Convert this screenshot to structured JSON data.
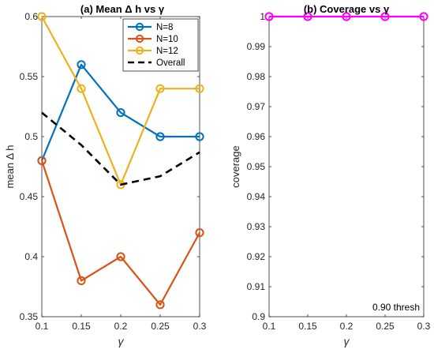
{
  "chart_data": [
    {
      "type": "line",
      "title": "(a) Mean Δ h vs γ",
      "xlabel": "γ",
      "ylabel": "mean Δ h",
      "xlim": [
        0.1,
        0.3
      ],
      "ylim": [
        0.35,
        0.6
      ],
      "xticks": [
        "0.1",
        "0.15",
        "0.2",
        "0.25",
        "0.3"
      ],
      "yticks": [
        "0.35",
        "0.4",
        "0.45",
        "0.5",
        "0.55",
        "0.6"
      ],
      "x": [
        0.1,
        0.15,
        0.2,
        0.25,
        0.3
      ],
      "grid": false,
      "legend_position": "top-right",
      "series": [
        {
          "name": "N=8",
          "values": [
            0.48,
            0.56,
            0.52,
            0.5,
            0.5
          ],
          "color": "#0072BD",
          "marker": "circle",
          "style": "solid"
        },
        {
          "name": "N=10",
          "values": [
            0.48,
            0.38,
            0.4,
            0.36,
            0.42
          ],
          "color": "#D95319",
          "marker": "circle",
          "style": "solid"
        },
        {
          "name": "N=12",
          "values": [
            0.6,
            0.54,
            0.46,
            0.54,
            0.54
          ],
          "color": "#EDB120",
          "marker": "circle",
          "style": "solid"
        },
        {
          "name": "Overall",
          "values": [
            0.52,
            0.493,
            0.46,
            0.467,
            0.487
          ],
          "color": "#000000",
          "marker": "none",
          "style": "dashed"
        }
      ]
    },
    {
      "type": "line",
      "title": "(b) Coverage vs γ",
      "xlabel": "γ",
      "ylabel": "coverage",
      "xlim": [
        0.1,
        0.3
      ],
      "ylim": [
        0.9,
        1.0
      ],
      "xticks": [
        "0.1",
        "0.15",
        "0.2",
        "0.25",
        "0.3"
      ],
      "yticks": [
        "0.9",
        "0.91",
        "0.92",
        "0.93",
        "0.94",
        "0.95",
        "0.96",
        "0.97",
        "0.98",
        "0.99",
        "1"
      ],
      "x": [
        0.1,
        0.15,
        0.2,
        0.25,
        0.3
      ],
      "grid": false,
      "series": [
        {
          "values": [
            1,
            1,
            1,
            1,
            1
          ],
          "color": "#FF00FF",
          "marker": "circle",
          "style": "solid"
        }
      ],
      "annotation": "0.90 thresh"
    }
  ]
}
